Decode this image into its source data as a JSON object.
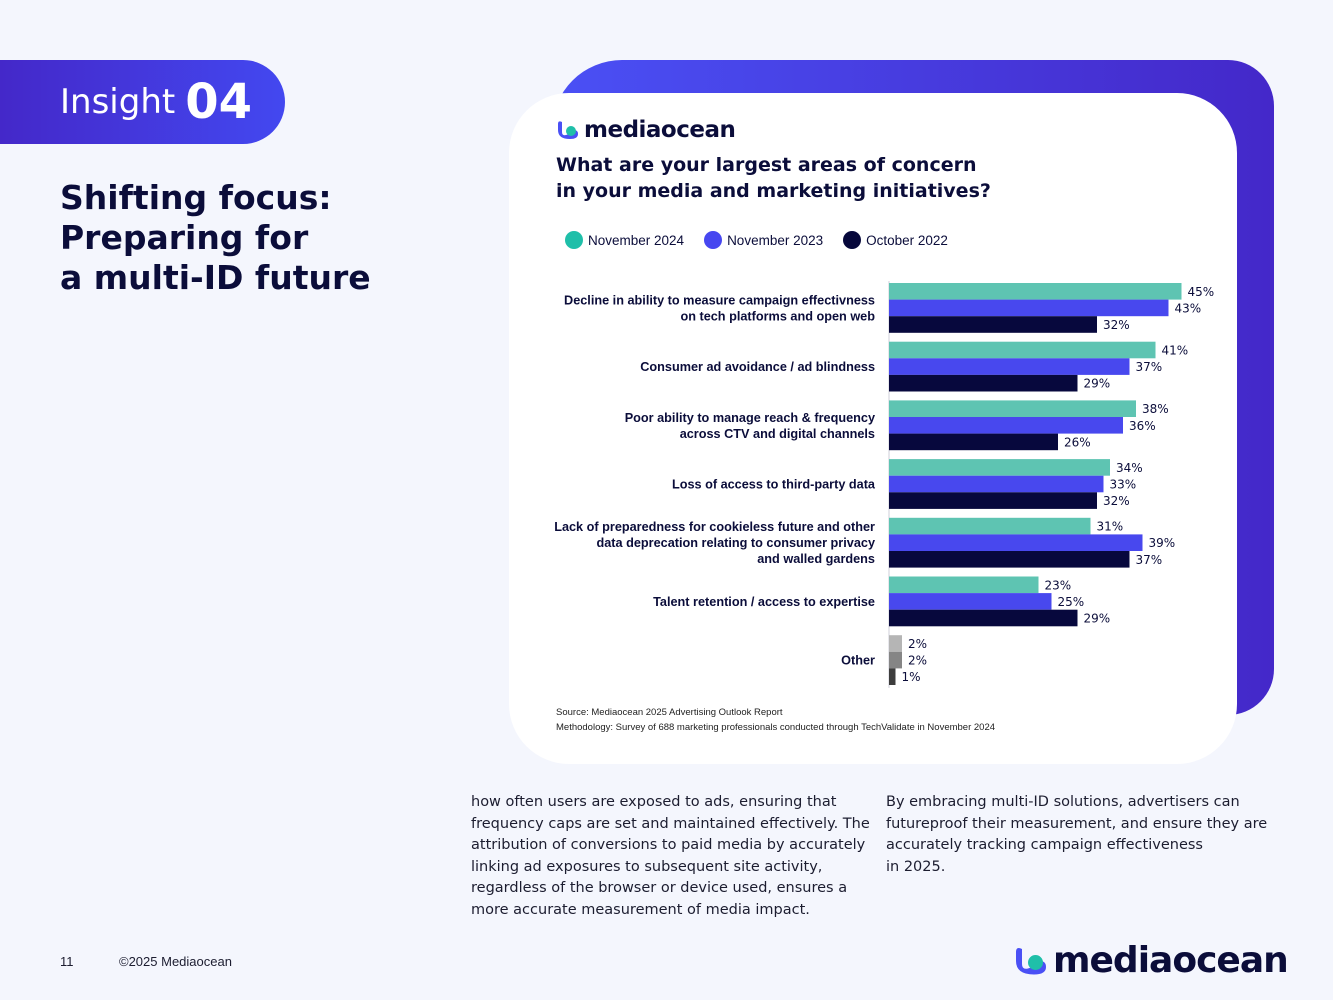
{
  "insight": {
    "word": "Insight",
    "number": "04"
  },
  "headline": {
    "lines": [
      "Shifting focus:",
      "Preparing for",
      "a multi-ID future"
    ]
  },
  "card": {
    "logo": "mediaocean",
    "title_lines": [
      "What are your largest areas of concern",
      "in your media and marketing initiatives?"
    ]
  },
  "legend": [
    {
      "label": "November 2024",
      "color": "#1fbfa9"
    },
    {
      "label": "November 2023",
      "color": "#4747f0"
    },
    {
      "label": "October 2022",
      "color": "#06073a"
    }
  ],
  "chart_data": {
    "type": "bar",
    "orientation": "horizontal",
    "title": "What are your largest areas of concern in your media and marketing initiatives?",
    "xlabel": "",
    "ylabel": "",
    "value_suffix": "%",
    "xlim": [
      0,
      50
    ],
    "categories": [
      [
        "Decline in ability to measure campaign effectivness",
        "on tech platforms and open web"
      ],
      [
        "Consumer ad avoidance / ad blindness"
      ],
      [
        "Poor ability to manage reach & frequency",
        "across CTV and digital channels"
      ],
      [
        "Loss of access to third-party data"
      ],
      [
        "Lack of preparedness for cookieless future and other",
        "data deprecation relating to consumer privacy",
        "and walled gardens"
      ],
      [
        "Talent retention / access to expertise"
      ],
      [
        "Other"
      ]
    ],
    "series": [
      {
        "name": "November 2024",
        "color": "#5ec4b2",
        "values": [
          45,
          41,
          38,
          34,
          31,
          23,
          2
        ]
      },
      {
        "name": "November 2023",
        "color": "#4848ee",
        "values": [
          43,
          37,
          36,
          33,
          39,
          25,
          2
        ]
      },
      {
        "name": "October 2022",
        "color": "#07083d",
        "values": [
          32,
          29,
          26,
          32,
          37,
          29,
          1
        ]
      }
    ],
    "other_colors": [
      "#b5b5b5",
      "#858585",
      "#3d3d3d"
    ]
  },
  "notes": {
    "source": "Source: Mediaocean 2025 Advertising Outlook Report",
    "methodology": "Methodology: Survey of 688 marketing professionals conducted through TechValidate in November 2024"
  },
  "body": {
    "col1": [
      "how often users are exposed to ads, ensuring that",
      "frequency caps are set and maintained effectively. The",
      "attribution of conversions to paid media by accurately",
      "linking ad exposures to subsequent site activity,",
      "regardless of the browser or device used, ensures a",
      "more accurate measurement of media impact."
    ],
    "col2": [
      "By embracing multi-ID solutions, advertisers can",
      "futureproof their measurement, and ensure they are",
      "accurately tracking campaign effectiveness",
      "in 2025."
    ]
  },
  "footer": {
    "page": "11",
    "copyright": "©2025 Mediaocean",
    "logo": "mediaocean"
  }
}
